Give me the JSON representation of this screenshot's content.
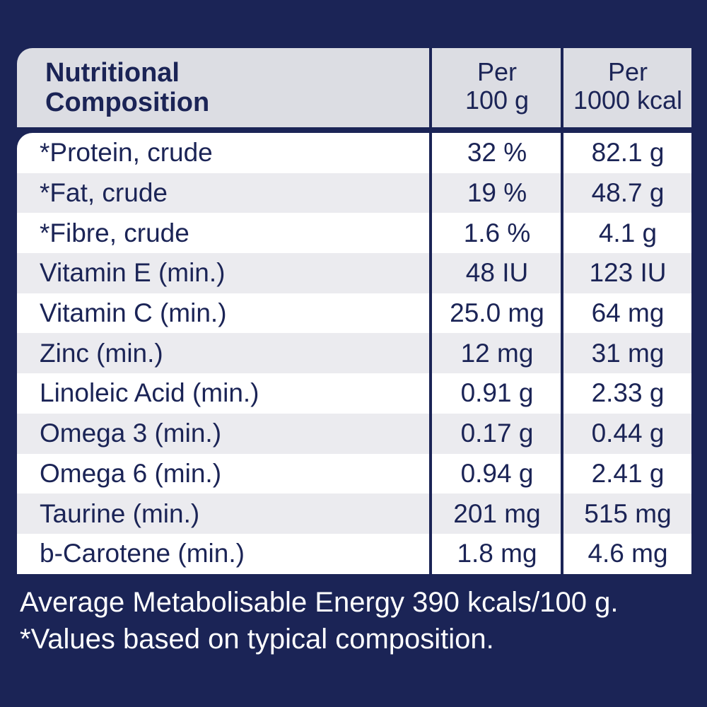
{
  "header": {
    "title_line1": "Nutritional",
    "title_line2": "Composition",
    "col1_line1": "Per",
    "col1_line2": "100 g",
    "col2_line1": "Per",
    "col2_line2": "1000 kcal"
  },
  "rows": [
    {
      "name": "*Protein, crude",
      "per100g": "32 %",
      "per1000kcal": "82.1 g"
    },
    {
      "name": "*Fat, crude",
      "per100g": "19 %",
      "per1000kcal": "48.7 g"
    },
    {
      "name": "*Fibre, crude",
      "per100g": "1.6 %",
      "per1000kcal": "4.1 g"
    },
    {
      "name": "Vitamin E (min.)",
      "per100g": "48 IU",
      "per1000kcal": "123 IU"
    },
    {
      "name": "Vitamin C (min.)",
      "per100g": "25.0 mg",
      "per1000kcal": "64 mg"
    },
    {
      "name": "Zinc (min.)",
      "per100g": "12 mg",
      "per1000kcal": "31 mg"
    },
    {
      "name": "Linoleic Acid (min.)",
      "per100g": "0.91 g",
      "per1000kcal": "2.33 g"
    },
    {
      "name": "Omega 3 (min.)",
      "per100g": "0.17 g",
      "per1000kcal": "0.44 g"
    },
    {
      "name": "Omega 6 (min.)",
      "per100g": "0.94 g",
      "per1000kcal": "2.41 g"
    },
    {
      "name": "Taurine (min.)",
      "per100g": "201 mg",
      "per1000kcal": "515 mg"
    },
    {
      "name": "b-Carotene (min.)",
      "per100g": "1.8 mg",
      "per1000kcal": "4.6 mg"
    }
  ],
  "footer": {
    "line1": "Average Metabolisable Energy 390 kcals/100 g.",
    "line2": "*Values based on typical composition."
  },
  "colors": {
    "background": "#1b2456",
    "header_bg": "#dcdde3",
    "row_light": "#ffffff",
    "row_shaded": "#ebebef",
    "text_dark": "#1b2456",
    "text_light": "#ffffff"
  }
}
